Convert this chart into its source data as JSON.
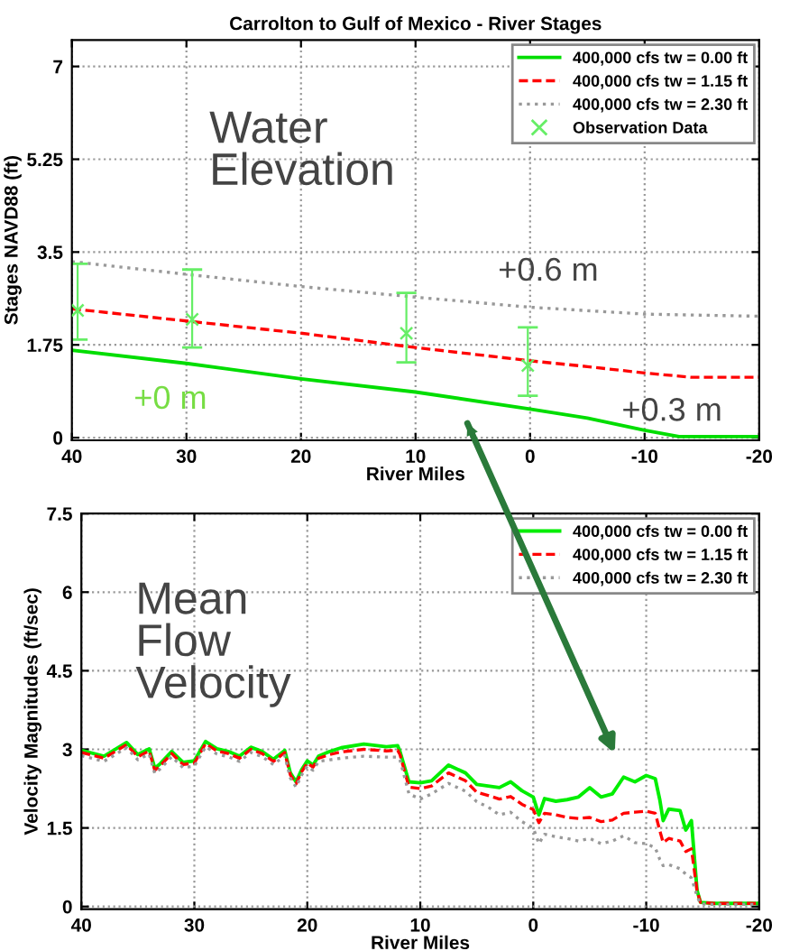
{
  "chart_data": [
    {
      "type": "line",
      "title": "Carrolton to Gulf of Mexico - River Stages",
      "xlabel": "River Miles",
      "ylabel": "Stages NAVD88 (ft)",
      "xlim": [
        40,
        -20
      ],
      "ylim": [
        -0.05,
        7.5
      ],
      "xticks": [
        40,
        30,
        20,
        10,
        0,
        -10,
        -20
      ],
      "yticks": [
        0,
        1.75,
        3.5,
        5.25,
        7
      ],
      "grid": true,
      "legend": "top right",
      "annotations": [
        "Water\nElevation",
        "+0.6 m",
        "+0 m",
        "+0.3 m"
      ],
      "series": [
        {
          "name": "400,000 cfs tw = 0.00 ft",
          "color": "#00dd00",
          "line_style": "solid",
          "x": [
            40,
            30,
            20,
            10,
            0,
            -5,
            -10,
            -13,
            -20
          ],
          "values": [
            1.65,
            1.4,
            1.11,
            0.86,
            0.54,
            0.37,
            0.14,
            0.02,
            0.02
          ]
        },
        {
          "name": "400,000 cfs tw = 1.15 ft",
          "color": "#ff0000",
          "line_style": "dashed",
          "x": [
            40,
            30,
            20,
            10,
            0,
            -5,
            -10,
            -14,
            -20
          ],
          "values": [
            2.43,
            2.2,
            1.97,
            1.7,
            1.45,
            1.34,
            1.22,
            1.14,
            1.14
          ]
        },
        {
          "name": "400,000 cfs tw = 2.30 ft",
          "color": "#999999",
          "line_style": "dotted",
          "x": [
            40,
            30,
            20,
            10,
            0,
            -10,
            -20
          ],
          "values": [
            3.32,
            3.08,
            2.85,
            2.65,
            2.46,
            2.33,
            2.29
          ]
        },
        {
          "name": "Observation Data",
          "type": "scatter",
          "marker": "cross",
          "color": "#66ee66",
          "x": [
            39.5,
            29.5,
            10.8,
            0.2
          ],
          "values": [
            2.4,
            2.23,
            1.97,
            1.36
          ],
          "errors": [
            [
              1.85,
              3.28
            ],
            [
              1.7,
              3.17
            ],
            [
              1.42,
              2.73
            ],
            [
              0.79,
              2.08
            ]
          ]
        }
      ]
    },
    {
      "type": "line",
      "xlabel": "River Miles",
      "ylabel": "Velocity Magnitudes (ft/sec)",
      "xlim": [
        40,
        -20
      ],
      "ylim": [
        -0.05,
        7.5
      ],
      "xticks": [
        40,
        30,
        20,
        10,
        0,
        -10,
        -20
      ],
      "yticks": [
        0,
        1.5,
        3,
        4.5,
        6,
        7.5
      ],
      "grid": true,
      "legend": "top right",
      "annotations": [
        "Mean\nFlow\nVelocity"
      ],
      "series": [
        {
          "name": "400,000 cfs tw = 0.00 ft",
          "color": "#00ee00",
          "line_style": "solid",
          "x": [
            40,
            38,
            36,
            35,
            34,
            33.5,
            33,
            32,
            31,
            30,
            29,
            28,
            27,
            26,
            25,
            24,
            23,
            22,
            21.5,
            21,
            20.5,
            20,
            19.5,
            19,
            18,
            17,
            15,
            13,
            12,
            11.8,
            11,
            10,
            9,
            7.5,
            6,
            5,
            4,
            3,
            2,
            1,
            0,
            -0.5,
            -1,
            -2,
            -3,
            -4,
            -5,
            -6,
            -7,
            -8,
            -9,
            -10,
            -10.8,
            -11.2,
            -11.5,
            -12,
            -13,
            -13.5,
            -14,
            -14.5,
            -14.8,
            -16,
            -20
          ],
          "values": [
            2.98,
            2.87,
            3.13,
            2.9,
            3.01,
            2.64,
            2.73,
            2.96,
            2.75,
            2.78,
            3.15,
            3.01,
            2.96,
            2.87,
            3.04,
            2.96,
            2.81,
            2.98,
            2.55,
            2.38,
            2.61,
            2.78,
            2.7,
            2.87,
            2.96,
            3.03,
            3.1,
            3.05,
            3.07,
            2.96,
            2.38,
            2.36,
            2.4,
            2.7,
            2.55,
            2.33,
            2.3,
            2.27,
            2.38,
            2.21,
            2.09,
            1.75,
            2.06,
            2.01,
            2.04,
            2.09,
            2.27,
            2.09,
            2.15,
            2.47,
            2.38,
            2.5,
            2.44,
            2.04,
            1.64,
            1.86,
            1.83,
            1.46,
            1.64,
            0.31,
            0.08,
            0.06,
            0.06
          ]
        },
        {
          "name": "400,000 cfs tw = 1.15 ft",
          "color": "#ff0000",
          "line_style": "dashed",
          "x": [
            40,
            38,
            36,
            35,
            34,
            33.5,
            33,
            32,
            31,
            30,
            29,
            28,
            27,
            26,
            25,
            24,
            23,
            22,
            21.5,
            21,
            20.5,
            20,
            19.5,
            19,
            18,
            17,
            15,
            13,
            12,
            11.8,
            11,
            10,
            9,
            7.5,
            6,
            5,
            4,
            3,
            2,
            1,
            0,
            -0.5,
            -1,
            -2,
            -3,
            -4,
            -5,
            -6,
            -7,
            -8,
            -9,
            -10,
            -10.8,
            -11.2,
            -11.5,
            -12,
            -13,
            -13.5,
            -14,
            -14.5,
            -14.8,
            -16,
            -20
          ],
          "values": [
            2.94,
            2.83,
            3.09,
            2.86,
            2.97,
            2.6,
            2.69,
            2.92,
            2.71,
            2.74,
            3.11,
            2.97,
            2.92,
            2.83,
            3.0,
            2.92,
            2.77,
            2.94,
            2.51,
            2.34,
            2.57,
            2.74,
            2.66,
            2.83,
            2.9,
            2.95,
            3.0,
            2.97,
            2.98,
            2.9,
            2.28,
            2.25,
            2.3,
            2.55,
            2.4,
            2.18,
            2.12,
            2.05,
            2.1,
            1.95,
            1.85,
            1.6,
            1.78,
            1.75,
            1.7,
            1.68,
            1.7,
            1.62,
            1.65,
            1.78,
            1.8,
            1.82,
            1.78,
            1.45,
            1.22,
            1.3,
            1.25,
            1.05,
            1.1,
            0.3,
            0.08,
            0.06,
            0.06
          ]
        },
        {
          "name": "400,000 cfs tw = 2.30 ft",
          "color": "#999999",
          "line_style": "dotted",
          "x": [
            40,
            38,
            36,
            35,
            34,
            33.5,
            33,
            32,
            31,
            30,
            29,
            28,
            27,
            26,
            25,
            24,
            23,
            22,
            21.5,
            21,
            20.5,
            20,
            19.5,
            19,
            18,
            17,
            15,
            13,
            12,
            11.8,
            11,
            10,
            9,
            7.5,
            6,
            5,
            4,
            3,
            2,
            1,
            0,
            -0.5,
            -1,
            -2,
            -3,
            -4,
            -5,
            -6,
            -7,
            -8,
            -9,
            -10,
            -10.8,
            -11.2,
            -11.5,
            -12,
            -13,
            -13.5,
            -14,
            -14.5,
            -14.8,
            -16,
            -20
          ],
          "values": [
            2.88,
            2.77,
            3.03,
            2.8,
            2.91,
            2.54,
            2.63,
            2.86,
            2.65,
            2.68,
            3.05,
            2.91,
            2.86,
            2.77,
            2.94,
            2.86,
            2.71,
            2.88,
            2.45,
            2.28,
            2.51,
            2.68,
            2.6,
            2.77,
            2.8,
            2.83,
            2.87,
            2.85,
            2.85,
            2.8,
            2.15,
            2.05,
            2.15,
            2.35,
            2.2,
            2.0,
            1.9,
            1.75,
            1.8,
            1.62,
            1.5,
            1.2,
            1.38,
            1.33,
            1.3,
            1.25,
            1.3,
            1.2,
            1.25,
            1.35,
            1.22,
            1.2,
            1.12,
            0.9,
            0.78,
            0.8,
            0.72,
            0.62,
            0.55,
            0.2,
            0.05,
            0.04,
            0.04
          ]
        }
      ]
    }
  ]
}
